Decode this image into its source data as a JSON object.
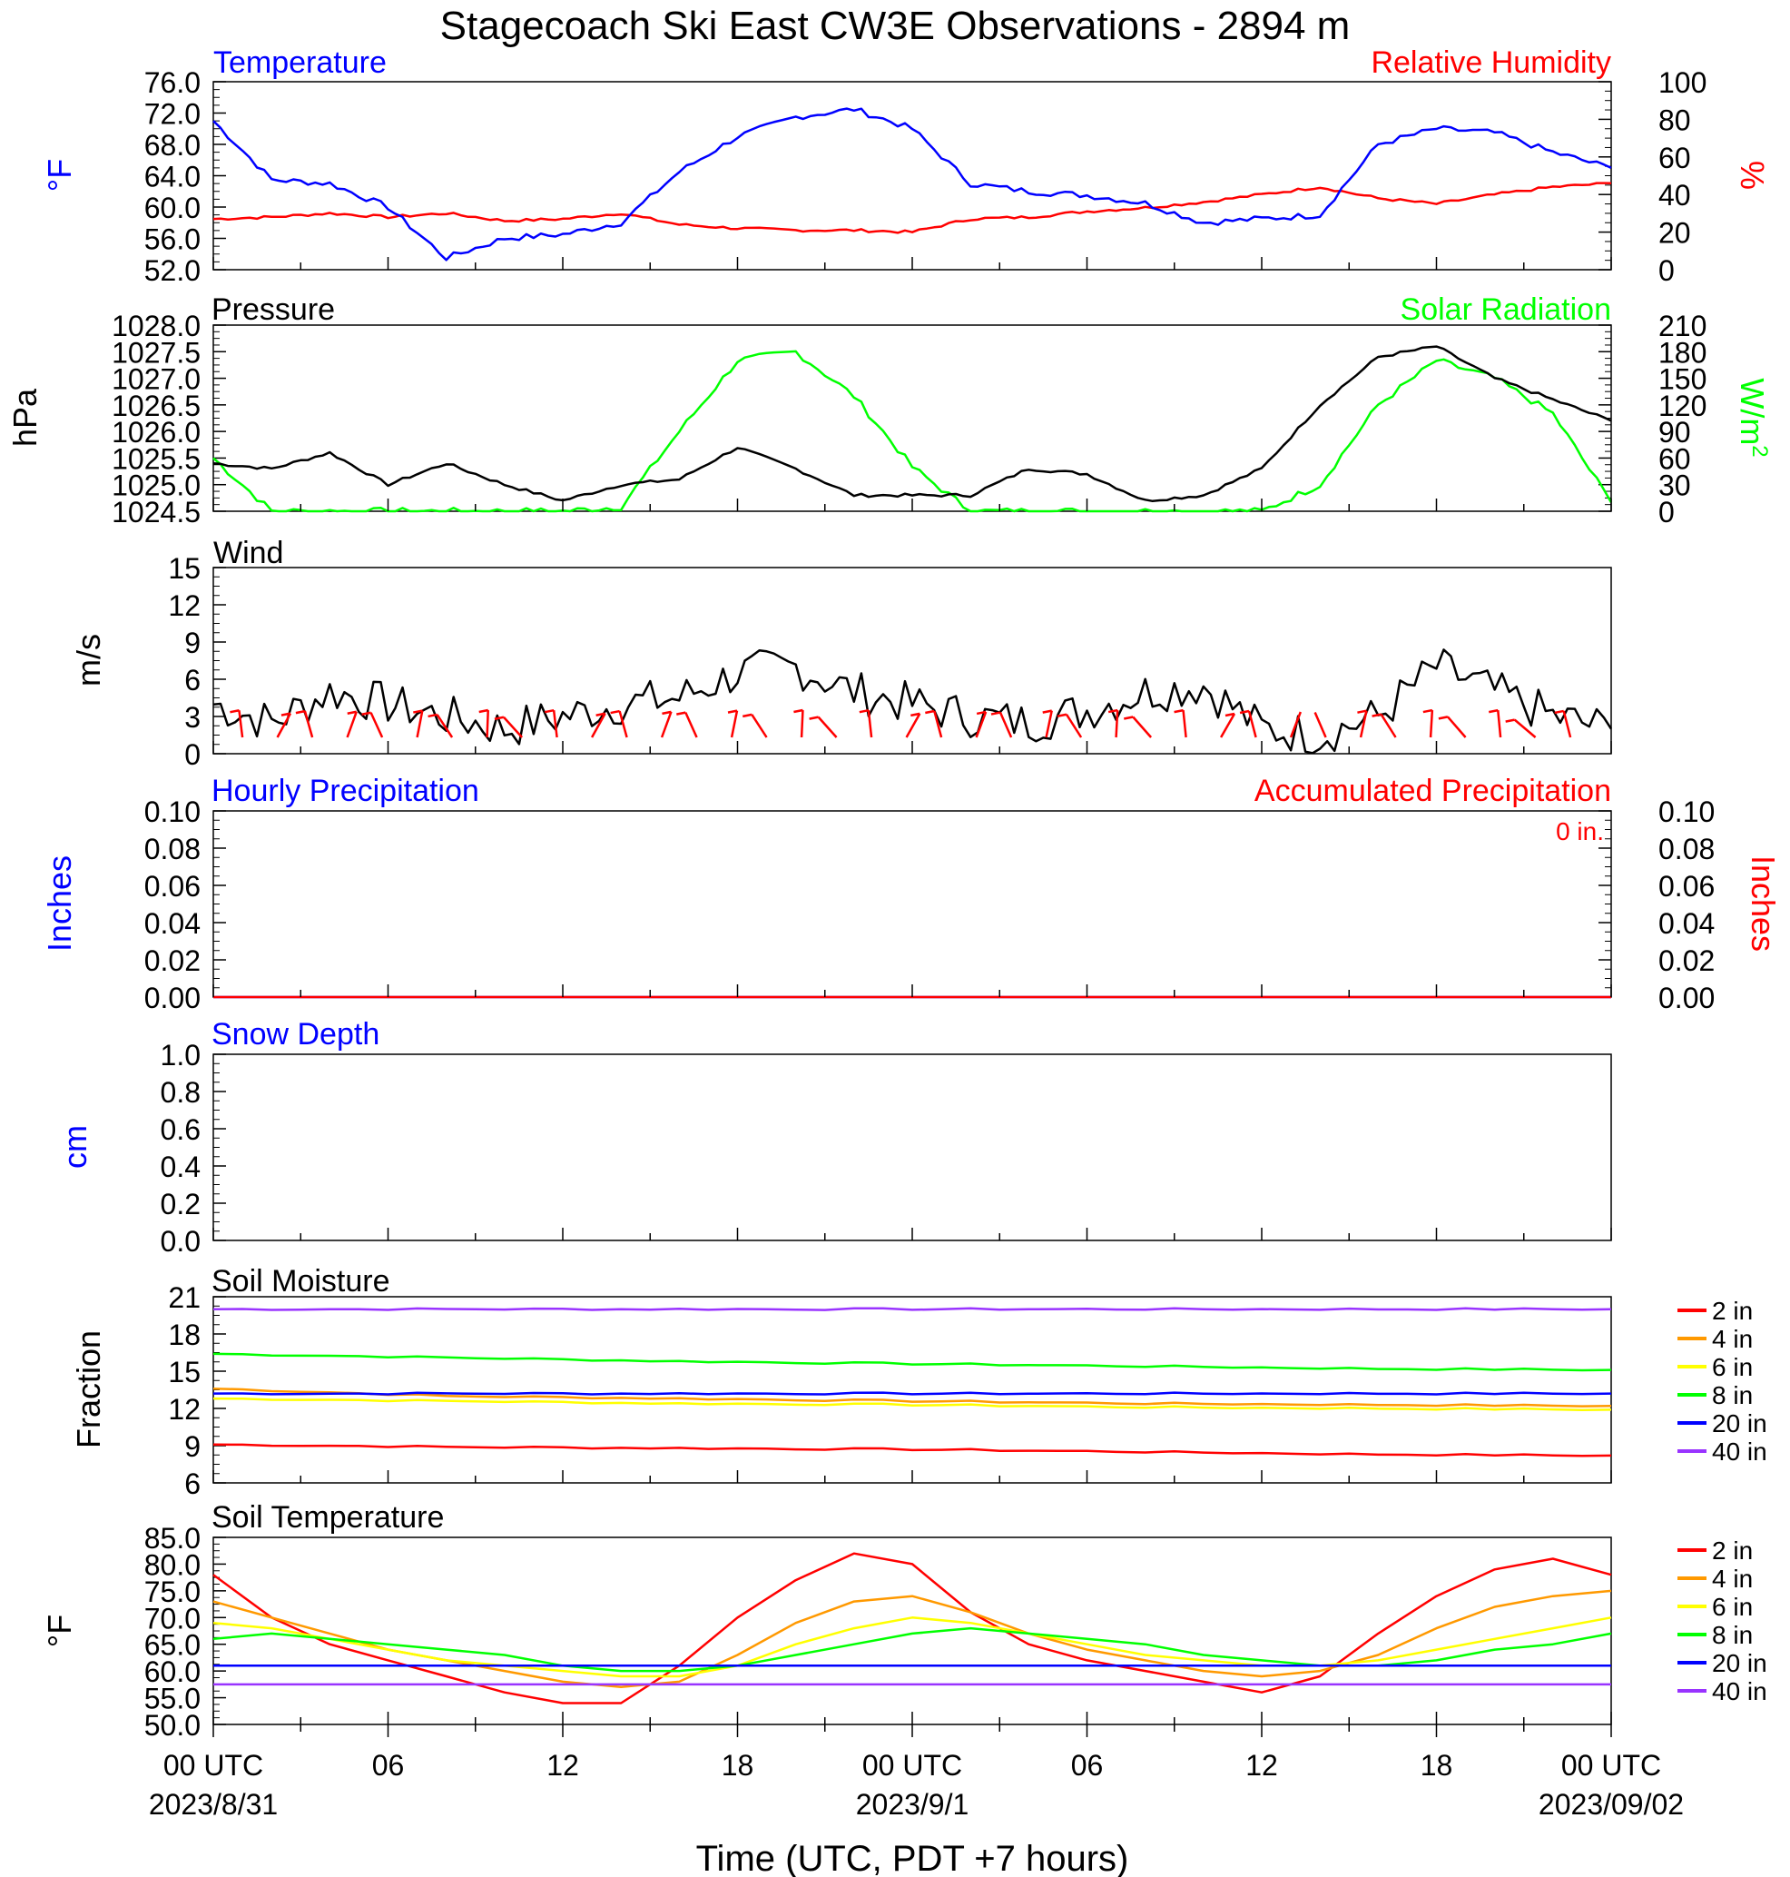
{
  "title": "Stagecoach Ski East CW3E Observations - 2894 m",
  "xaxis": {
    "title": "Time (UTC, PDT +7 hours)",
    "ticks": [
      "00 UTC",
      "06",
      "12",
      "18",
      "00 UTC",
      "06",
      "12",
      "18",
      "00 UTC"
    ],
    "dates": [
      "2023/8/31",
      "2023/9/1",
      "2023/09/02"
    ],
    "range_hours": [
      0,
      48
    ]
  },
  "colors": {
    "temp": "#0000ff",
    "rh": "#ff0000",
    "pressure": "#000000",
    "solar": "#00ff00",
    "wind": "#000000",
    "barb": "#ff0000",
    "soil_2in": "#ff0000",
    "soil_4in": "#ff9900",
    "soil_6in": "#ffff00",
    "soil_8in": "#00ff00",
    "soil_20in": "#0000ff",
    "soil_40in": "#9933ff"
  },
  "chart_data": [
    {
      "type": "line",
      "id": "temp-rh",
      "title_left": "Temperature",
      "title_right": "Relative Humidity",
      "ylabel_left": "°F",
      "ylabel_right": "%",
      "ylim_left": [
        52,
        76
      ],
      "ylim_right": [
        0,
        100
      ],
      "ticks_left": [
        "76.0",
        "72.0",
        "68.0",
        "64.0",
        "60.0",
        "56.0",
        "52.0"
      ],
      "ticks_right": [
        "100",
        "80",
        "60",
        "40",
        "20",
        "0"
      ],
      "x_hours": [
        0,
        2,
        4,
        6,
        8,
        10,
        12,
        14,
        16,
        18,
        20,
        22,
        24,
        26,
        28,
        30,
        32,
        34,
        36,
        38,
        40,
        42,
        44,
        46,
        48
      ],
      "series": [
        {
          "name": "Temperature",
          "axis": "left",
          "values": [
            71.0,
            63.5,
            63.0,
            60.0,
            53.5,
            56.0,
            56.5,
            58.0,
            64.5,
            69.0,
            71.5,
            72.5,
            70.0,
            63.0,
            62.0,
            61.5,
            60.5,
            58.0,
            58.5,
            59.0,
            68.0,
            70.0,
            69.5,
            67.0,
            65.0
          ]
        },
        {
          "name": "Relative Humidity",
          "axis": "right",
          "values": [
            27,
            28,
            30,
            28,
            30,
            26,
            27,
            30,
            24,
            22,
            21,
            21,
            20,
            27,
            28,
            31,
            33,
            36,
            40,
            44,
            38,
            35,
            40,
            44,
            46
          ]
        }
      ]
    },
    {
      "type": "line",
      "id": "pressure-solar",
      "title_left": "Pressure",
      "title_right": "Solar Radiation",
      "ylabel_left": "hPa",
      "ylabel_right": "W/m2",
      "ylim_left": [
        1024.5,
        1028.0
      ],
      "ylim_right": [
        0,
        210
      ],
      "ticks_left": [
        "1028.0",
        "1027.5",
        "1027.0",
        "1026.5",
        "1026.0",
        "1025.5",
        "1025.0",
        "1024.5"
      ],
      "ticks_right": [
        "210",
        "180",
        "150",
        "120",
        "90",
        "60",
        "30",
        "0"
      ],
      "x_hours": [
        0,
        2,
        4,
        6,
        8,
        10,
        12,
        14,
        16,
        18,
        20,
        22,
        24,
        26,
        28,
        30,
        32,
        34,
        36,
        38,
        40,
        42,
        44,
        46,
        48
      ],
      "series": [
        {
          "name": "Pressure",
          "axis": "left",
          "values": [
            1025.4,
            1025.3,
            1025.6,
            1025.0,
            1025.4,
            1025.0,
            1024.7,
            1025.0,
            1025.1,
            1025.7,
            1025.3,
            1024.8,
            1024.8,
            1024.8,
            1025.3,
            1025.2,
            1024.7,
            1024.8,
            1025.3,
            1026.5,
            1027.4,
            1027.6,
            1027.0,
            1026.6,
            1026.2
          ]
        },
        {
          "name": "Solar Radiation",
          "axis": "right",
          "values": [
            60,
            0,
            0,
            0,
            0,
            0,
            0,
            5,
            90,
            170,
            180,
            130,
            50,
            0,
            0,
            0,
            0,
            0,
            0,
            30,
            120,
            170,
            150,
            110,
            10
          ]
        }
      ]
    },
    {
      "type": "line",
      "id": "wind",
      "title": "Wind",
      "ylabel": "m/s",
      "ylim": [
        0,
        15
      ],
      "ticks": [
        "15",
        "12",
        "9",
        "6",
        "3",
        "0"
      ],
      "x_hours": [
        0,
        2,
        4,
        6,
        8,
        10,
        12,
        14,
        16,
        18,
        20,
        22,
        24,
        26,
        28,
        30,
        32,
        34,
        36,
        38,
        40,
        42,
        44,
        46,
        48
      ],
      "series": [
        {
          "name": "Wind Speed",
          "values": [
            4.0,
            2.5,
            5.0,
            4.0,
            3.0,
            2.0,
            3.0,
            4.0,
            4.5,
            6.5,
            7.0,
            5.0,
            4.0,
            3.0,
            2.5,
            3.5,
            5.0,
            5.5,
            2.0,
            1.5,
            3.0,
            7.0,
            5.0,
            3.0,
            2.0
          ]
        }
      ]
    },
    {
      "type": "line",
      "id": "precip",
      "title_left": "Hourly Precipitation",
      "title_right": "Accumulated Precipitation",
      "annotation": "0 in.",
      "ylabel_left": "Inches",
      "ylabel_right": "Inches",
      "ylim": [
        0,
        0.1
      ],
      "ticks": [
        "0.10",
        "0.08",
        "0.06",
        "0.04",
        "0.02",
        "0.00"
      ],
      "x_hours": [
        0,
        48
      ],
      "series": [
        {
          "name": "Hourly Precipitation",
          "values": [
            0,
            0
          ]
        },
        {
          "name": "Accumulated Precipitation",
          "values": [
            0,
            0
          ]
        }
      ]
    },
    {
      "type": "line",
      "id": "snow",
      "title": "Snow Depth",
      "ylabel": "cm",
      "ylim": [
        0,
        1
      ],
      "ticks": [
        "1.0",
        "0.8",
        "0.6",
        "0.4",
        "0.2",
        "0.0"
      ],
      "series": []
    },
    {
      "type": "line",
      "id": "soil-moisture",
      "title": "Soil Moisture",
      "ylabel": "Fraction",
      "ylim": [
        6,
        21
      ],
      "ticks": [
        "21",
        "18",
        "15",
        "12",
        "9",
        "6"
      ],
      "legend": [
        "2 in",
        "4 in",
        "6 in",
        "8 in",
        "20 in",
        "40 in"
      ],
      "x_hours": [
        0,
        8,
        16,
        24,
        32,
        40,
        48
      ],
      "series": [
        {
          "name": "2 in",
          "values": [
            9.1,
            8.9,
            8.8,
            8.7,
            8.5,
            8.3,
            8.2
          ]
        },
        {
          "name": "4 in",
          "values": [
            13.6,
            13.0,
            12.8,
            12.6,
            12.4,
            12.3,
            12.2
          ]
        },
        {
          "name": "6 in",
          "values": [
            12.8,
            12.6,
            12.4,
            12.3,
            12.1,
            12.0,
            11.9
          ]
        },
        {
          "name": "8 in",
          "values": [
            16.4,
            16.1,
            15.8,
            15.6,
            15.4,
            15.2,
            15.1
          ]
        },
        {
          "name": "20 in",
          "values": [
            13.2,
            13.2,
            13.2,
            13.2,
            13.2,
            13.2,
            13.2
          ]
        },
        {
          "name": "40 in",
          "values": [
            20.0,
            20.0,
            20.0,
            20.0,
            20.0,
            20.0,
            20.0
          ]
        }
      ]
    },
    {
      "type": "line",
      "id": "soil-temp",
      "title": "Soil Temperature",
      "ylabel": "°F",
      "ylim": [
        50,
        85
      ],
      "ticks": [
        "85.0",
        "80.0",
        "75.0",
        "70.0",
        "65.0",
        "60.0",
        "55.0",
        "50.0"
      ],
      "legend": [
        "2 in",
        "4 in",
        "6 in",
        "8 in",
        "20 in",
        "40 in"
      ],
      "x_hours": [
        0,
        2,
        4,
        6,
        8,
        10,
        12,
        14,
        16,
        18,
        20,
        22,
        24,
        26,
        28,
        30,
        32,
        34,
        36,
        38,
        40,
        42,
        44,
        46,
        48
      ],
      "series": [
        {
          "name": "2 in",
          "values": [
            78,
            70,
            65,
            62,
            59,
            56,
            54,
            54,
            61,
            70,
            77,
            82,
            80,
            71,
            65,
            62,
            60,
            58,
            56,
            59,
            67,
            74,
            79,
            81,
            78
          ]
        },
        {
          "name": "4 in",
          "values": [
            73,
            70,
            67,
            64,
            62,
            60,
            58,
            57,
            58,
            63,
            69,
            73,
            74,
            71,
            67,
            64,
            62,
            60,
            59,
            60,
            63,
            68,
            72,
            74,
            75
          ]
        },
        {
          "name": "6 in",
          "values": [
            69,
            68,
            66,
            64,
            62,
            61,
            60,
            59,
            59,
            61,
            65,
            68,
            70,
            69,
            67,
            65,
            63,
            62,
            61,
            61,
            62,
            64,
            66,
            68,
            70
          ]
        },
        {
          "name": "8 in",
          "values": [
            66,
            67,
            66,
            65,
            64,
            63,
            61,
            60,
            60,
            61,
            63,
            65,
            67,
            68,
            67,
            66,
            65,
            63,
            62,
            61,
            61,
            62,
            64,
            65,
            67
          ]
        },
        {
          "name": "20 in",
          "values": [
            61,
            61,
            61,
            61,
            61,
            61,
            61,
            61,
            61,
            61,
            61,
            61,
            61,
            61,
            61,
            61,
            61,
            61,
            61,
            61,
            61,
            61,
            61,
            61,
            61
          ]
        },
        {
          "name": "40 in",
          "values": [
            57.5,
            57.5,
            57.5,
            57.5,
            57.5,
            57.5,
            57.5,
            57.5,
            57.5,
            57.5,
            57.5,
            57.5,
            57.5,
            57.5,
            57.5,
            57.5,
            57.5,
            57.5,
            57.5,
            57.5,
            57.5,
            57.5,
            57.5,
            57.5,
            57.5
          ]
        }
      ]
    }
  ]
}
